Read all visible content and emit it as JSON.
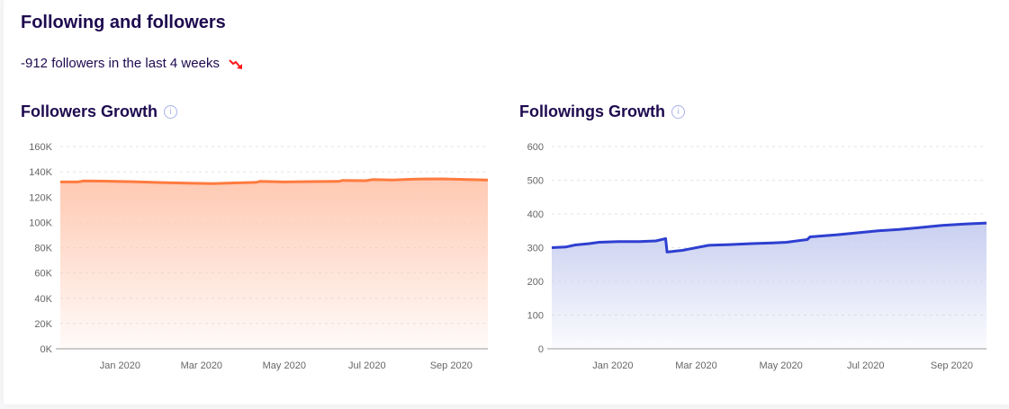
{
  "section": {
    "title": "Following and followers",
    "summary": "-912 followers in the last 4 weeks",
    "trend_icon": "trend-down-arrow",
    "trend_color": "#ff1a1a"
  },
  "chart_data": [
    {
      "type": "area",
      "title": "Followers Growth",
      "info_icon": "info-icon",
      "color": "#ff7b3f",
      "fill_color": "#ffc9b2",
      "ylim": [
        0,
        160000
      ],
      "yticks": [
        0,
        20000,
        40000,
        60000,
        80000,
        100000,
        120000,
        140000,
        160000
      ],
      "ytick_labels": [
        "0K",
        "20K",
        "40K",
        "60K",
        "80K",
        "100K",
        "120K",
        "140K",
        "160K"
      ],
      "xlim": [
        "2019-11-18",
        "2020-09-28"
      ],
      "xticks": [
        "2020-01-01",
        "2020-03-01",
        "2020-05-01",
        "2020-07-01",
        "2020-09-01"
      ],
      "xtick_labels": [
        "Jan 2020",
        "Mar 2020",
        "May 2020",
        "Jul 2020",
        "Sep 2020"
      ],
      "grid": true,
      "x": [
        "2019-11-18",
        "2019-12-01",
        "2019-12-05",
        "2019-12-20",
        "2020-01-10",
        "2020-02-01",
        "2020-02-20",
        "2020-03-10",
        "2020-03-25",
        "2020-04-10",
        "2020-04-13",
        "2020-05-01",
        "2020-05-20",
        "2020-06-10",
        "2020-06-13",
        "2020-06-30",
        "2020-07-05",
        "2020-07-20",
        "2020-07-30",
        "2020-08-10",
        "2020-08-25",
        "2020-09-10",
        "2020-09-28"
      ],
      "y": [
        132000,
        132000,
        132800,
        132600,
        132200,
        131500,
        131000,
        130600,
        131200,
        131600,
        132400,
        132000,
        132300,
        132400,
        133200,
        133000,
        133800,
        133500,
        134000,
        134300,
        134400,
        134000,
        133500
      ]
    },
    {
      "type": "area",
      "title": "Followings Growth",
      "info_icon": "info-icon",
      "color": "#2e3fd0",
      "fill_color": "#c9cff0",
      "ylim": [
        0,
        600
      ],
      "yticks": [
        0,
        100,
        200,
        300,
        400,
        500,
        600
      ],
      "ytick_labels": [
        "0",
        "100",
        "200",
        "300",
        "400",
        "500",
        "600"
      ],
      "xlim": [
        "2019-11-18",
        "2020-09-26"
      ],
      "xticks": [
        "2020-01-01",
        "2020-03-01",
        "2020-05-01",
        "2020-07-01",
        "2020-09-01"
      ],
      "xtick_labels": [
        "Jan 2020",
        "Mar 2020",
        "May 2020",
        "Jul 2020",
        "Sep 2020"
      ],
      "grid": true,
      "x": [
        "2019-11-18",
        "2019-11-28",
        "2019-12-05",
        "2019-12-15",
        "2019-12-22",
        "2020-01-05",
        "2020-01-20",
        "2020-02-01",
        "2020-02-08",
        "2020-02-09",
        "2020-02-20",
        "2020-03-10",
        "2020-03-25",
        "2020-04-10",
        "2020-04-25",
        "2020-05-05",
        "2020-05-20",
        "2020-05-22",
        "2020-06-10",
        "2020-06-25",
        "2020-07-10",
        "2020-07-25",
        "2020-08-10",
        "2020-08-25",
        "2020-09-10",
        "2020-09-26"
      ],
      "y": [
        300,
        302,
        308,
        312,
        316,
        318,
        318,
        320,
        327,
        287,
        292,
        307,
        309,
        312,
        314,
        316,
        324,
        332,
        338,
        344,
        350,
        354,
        360,
        366,
        370,
        373
      ]
    }
  ]
}
